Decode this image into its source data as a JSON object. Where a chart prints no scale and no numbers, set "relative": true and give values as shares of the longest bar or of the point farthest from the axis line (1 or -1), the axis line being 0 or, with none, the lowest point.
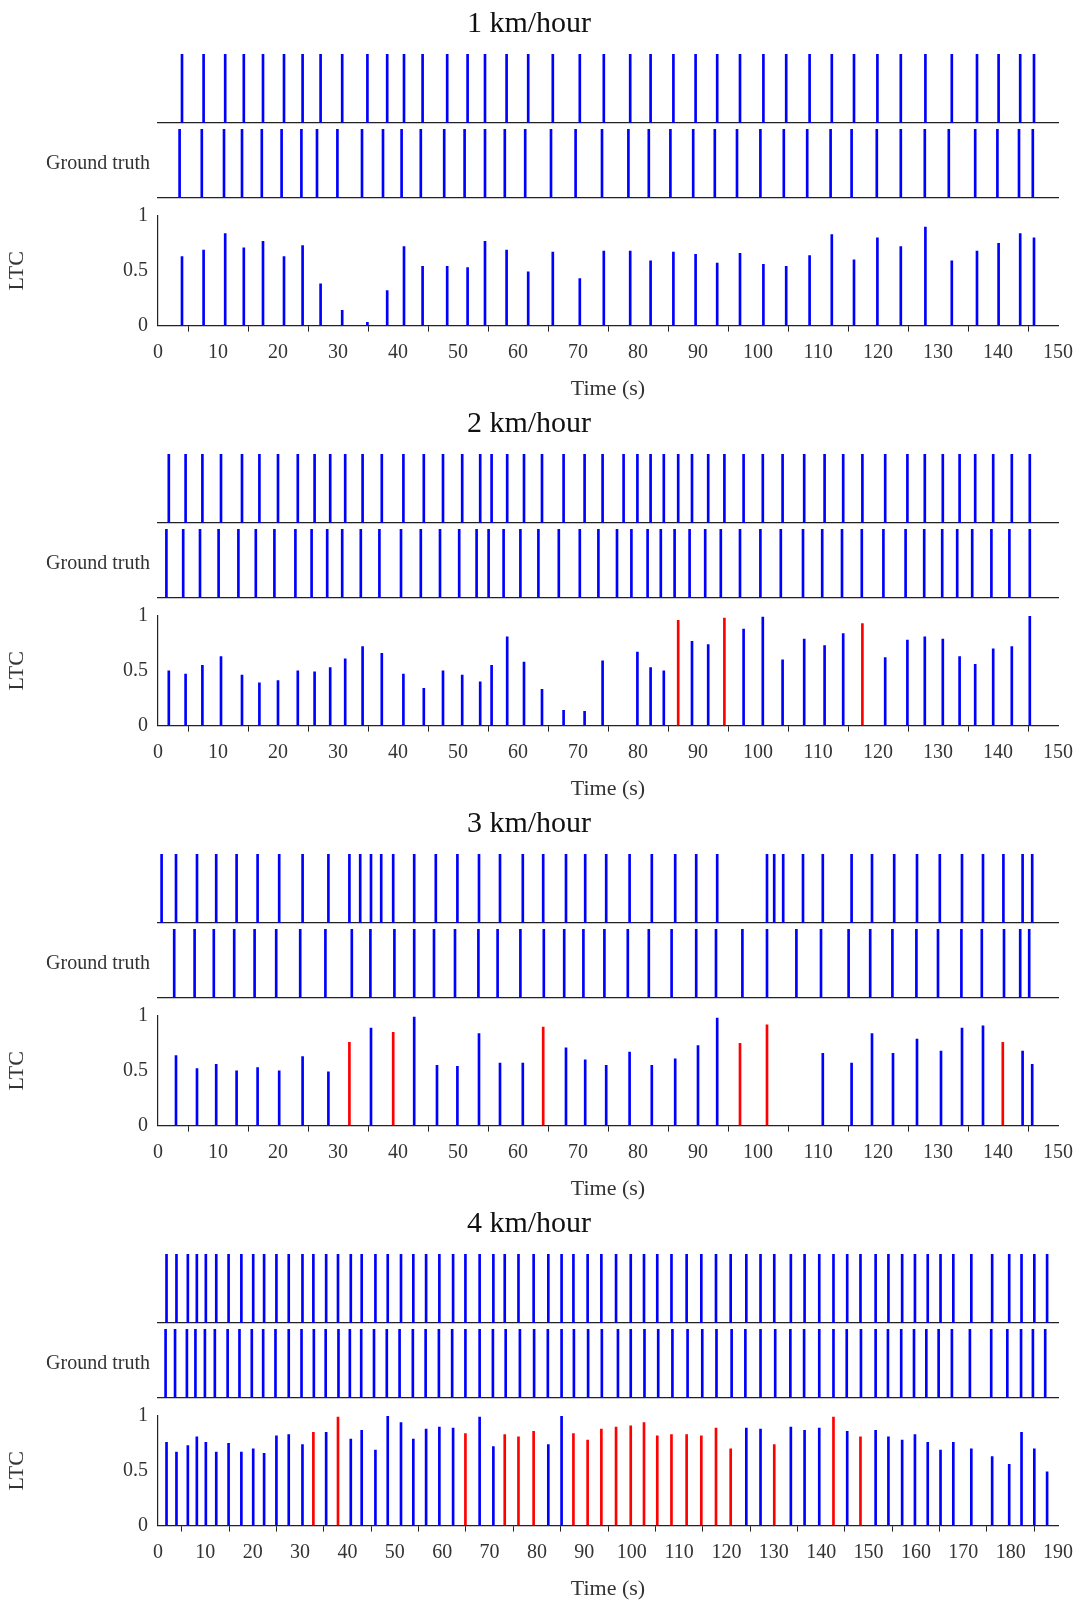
{
  "chart_data": [
    {
      "type": "bar",
      "title": "1 km/hour",
      "relative": true,
      "color": "#0000ff",
      "xlim": [
        0,
        150
      ],
      "x": [
        4.0,
        7.6,
        11.2,
        14.3,
        17.5,
        21.0,
        24.1,
        27.1,
        30.7,
        34.9,
        38.2,
        41.0,
        44.1,
        48.2,
        51.6,
        54.5,
        58.1,
        61.7,
        65.8,
        70.3,
        74.3,
        78.7,
        82.1,
        85.9,
        89.6,
        93.2,
        97.0,
        100.9,
        104.7,
        108.6,
        112.3,
        116.0,
        119.9,
        123.8,
        127.9,
        132.3,
        136.5,
        140.1,
        143.7,
        146.0
      ],
      "values": [
        1,
        1,
        1,
        1,
        1,
        1,
        1,
        1,
        1,
        1,
        1,
        1,
        1,
        1,
        1,
        1,
        1,
        1,
        1,
        1,
        1,
        1,
        1,
        1,
        1,
        1,
        1,
        1,
        1,
        1,
        1,
        1,
        1,
        1,
        1,
        1,
        1,
        1,
        1,
        1
      ]
    },
    {
      "type": "bar",
      "ylabel": "Ground truth",
      "relative": true,
      "color": "#0000ff",
      "xlim": [
        0,
        150
      ],
      "x": [
        3.6,
        7.3,
        11.0,
        14.0,
        17.3,
        20.6,
        23.9,
        26.5,
        29.9,
        34.0,
        37.5,
        40.6,
        43.8,
        47.7,
        51.1,
        54.5,
        57.8,
        61.2,
        65.5,
        69.6,
        74.0,
        78.4,
        81.8,
        85.4,
        89.2,
        92.8,
        96.5,
        100.4,
        104.3,
        108.2,
        112.1,
        115.6,
        119.8,
        123.8,
        127.8,
        131.8,
        136.2,
        139.9,
        143.5,
        145.8
      ],
      "values": [
        1,
        1,
        1,
        1,
        1,
        1,
        1,
        1,
        1,
        1,
        1,
        1,
        1,
        1,
        1,
        1,
        1,
        1,
        1,
        1,
        1,
        1,
        1,
        1,
        1,
        1,
        1,
        1,
        1,
        1,
        1,
        1,
        1,
        1,
        1,
        1,
        1,
        1,
        1,
        1
      ]
    },
    {
      "type": "bar",
      "xlabel": "Time (s)",
      "ylabel": "LTC",
      "color": "#0000ff",
      "xlim": [
        0,
        150
      ],
      "xticks": [
        0,
        10,
        20,
        30,
        40,
        50,
        60,
        70,
        80,
        90,
        100,
        110,
        120,
        130,
        140,
        150
      ],
      "ylim": [
        0,
        1
      ],
      "yticks": [
        0,
        0.5,
        1
      ],
      "x": [
        4.0,
        7.6,
        11.2,
        14.3,
        17.5,
        21.0,
        24.1,
        27.1,
        30.7,
        34.9,
        38.2,
        41.0,
        44.1,
        48.2,
        51.6,
        54.5,
        58.1,
        61.7,
        65.8,
        70.3,
        74.3,
        78.7,
        82.1,
        85.9,
        89.6,
        93.2,
        97.0,
        100.9,
        104.7,
        108.6,
        112.3,
        116.0,
        119.9,
        123.8,
        127.9,
        132.3,
        136.5,
        140.1,
        143.7,
        146.0
      ],
      "values": [
        0.63,
        0.69,
        0.84,
        0.71,
        0.77,
        0.63,
        0.73,
        0.38,
        0.14,
        0.03,
        0.32,
        0.72,
        0.54,
        0.54,
        0.53,
        0.77,
        0.69,
        0.49,
        0.67,
        0.43,
        0.68,
        0.68,
        0.59,
        0.67,
        0.65,
        0.57,
        0.66,
        0.56,
        0.54,
        0.64,
        0.83,
        0.6,
        0.8,
        0.72,
        0.9,
        0.59,
        0.68,
        0.75,
        0.84,
        0.8
      ]
    },
    {
      "type": "bar",
      "title": "2 km/hour",
      "relative": true,
      "color": "#0000ff",
      "xlim": [
        0,
        150
      ],
      "x": [
        1.8,
        4.6,
        7.4,
        10.5,
        14.0,
        16.9,
        20.0,
        23.3,
        26.1,
        28.7,
        31.2,
        34.1,
        37.3,
        40.9,
        44.3,
        47.5,
        50.7,
        53.7,
        55.6,
        58.2,
        61.0,
        64.0,
        67.6,
        71.1,
        74.1,
        77.6,
        79.9,
        82.1,
        84.3,
        86.7,
        89.0,
        91.7,
        94.4,
        97.6,
        100.8,
        104.1,
        107.7,
        111.1,
        114.2,
        117.4,
        121.2,
        124.9,
        127.8,
        130.8,
        133.6,
        136.2,
        139.2,
        142.3,
        145.3
      ],
      "values": [
        1,
        1,
        1,
        1,
        1,
        1,
        1,
        1,
        1,
        1,
        1,
        1,
        1,
        1,
        1,
        1,
        1,
        1,
        1,
        1,
        1,
        1,
        1,
        1,
        1,
        1,
        1,
        1,
        1,
        1,
        1,
        1,
        1,
        1,
        1,
        1,
        1,
        1,
        1,
        1,
        1,
        1,
        1,
        1,
        1,
        1,
        1,
        1,
        1
      ]
    },
    {
      "type": "bar",
      "ylabel": "Ground truth",
      "relative": true,
      "color": "#0000ff",
      "xlim": [
        0,
        150
      ],
      "x": [
        1.4,
        4.2,
        7.0,
        10.1,
        13.4,
        16.3,
        19.4,
        22.9,
        25.6,
        28.2,
        30.7,
        33.8,
        36.9,
        40.5,
        43.8,
        47.0,
        50.2,
        53.1,
        55.1,
        57.6,
        60.4,
        63.4,
        66.8,
        70.3,
        73.4,
        76.5,
        78.9,
        81.6,
        83.8,
        86.1,
        88.6,
        91.2,
        93.8,
        97.0,
        100.4,
        103.8,
        107.5,
        110.7,
        114.0,
        117.3,
        120.9,
        124.6,
        127.7,
        130.7,
        133.2,
        135.7,
        138.9,
        141.9,
        145.3
      ],
      "values": [
        1,
        1,
        1,
        1,
        1,
        1,
        1,
        1,
        1,
        1,
        1,
        1,
        1,
        1,
        1,
        1,
        1,
        1,
        1,
        1,
        1,
        1,
        1,
        1,
        1,
        1,
        1,
        1,
        1,
        1,
        1,
        1,
        1,
        1,
        1,
        1,
        1,
        1,
        1,
        1,
        1,
        1,
        1,
        1,
        1,
        1,
        1,
        1,
        1
      ]
    },
    {
      "type": "bar",
      "xlabel": "Time (s)",
      "ylabel": "LTC",
      "xlim": [
        0,
        150
      ],
      "xticks": [
        0,
        10,
        20,
        30,
        40,
        50,
        60,
        70,
        80,
        90,
        100,
        110,
        120,
        130,
        140,
        150
      ],
      "ylim": [
        0,
        1
      ],
      "yticks": [
        0,
        0.5,
        1
      ],
      "x": [
        1.8,
        4.6,
        7.4,
        10.5,
        14.0,
        16.9,
        20.0,
        23.3,
        26.1,
        28.7,
        31.2,
        34.1,
        37.3,
        40.9,
        44.3,
        47.5,
        50.7,
        53.7,
        55.6,
        58.2,
        61.0,
        64.0,
        67.6,
        71.1,
        74.1,
        79.9,
        82.1,
        84.3,
        86.7,
        89.0,
        91.7,
        94.4,
        97.6,
        100.8,
        104.1,
        107.7,
        111.1,
        114.2,
        117.4,
        121.2,
        124.9,
        127.8,
        130.8,
        133.6,
        136.2,
        139.2,
        142.3,
        145.3
      ],
      "values": [
        0.5,
        0.47,
        0.55,
        0.63,
        0.46,
        0.39,
        0.41,
        0.5,
        0.49,
        0.53,
        0.61,
        0.72,
        0.66,
        0.47,
        0.34,
        0.5,
        0.46,
        0.4,
        0.55,
        0.81,
        0.58,
        0.33,
        0.14,
        0.13,
        0.59,
        0.67,
        0.53,
        0.5,
        0.96,
        0.77,
        0.74,
        0.98,
        0.88,
        0.99,
        0.6,
        0.79,
        0.73,
        0.84,
        0.93,
        0.62,
        0.78,
        0.81,
        0.79,
        0.63,
        0.56,
        0.7,
        0.72,
        1.0
      ],
      "colors": [
        "#0000ff",
        "#0000ff",
        "#0000ff",
        "#0000ff",
        "#0000ff",
        "#0000ff",
        "#0000ff",
        "#0000ff",
        "#0000ff",
        "#0000ff",
        "#0000ff",
        "#0000ff",
        "#0000ff",
        "#0000ff",
        "#0000ff",
        "#0000ff",
        "#0000ff",
        "#0000ff",
        "#0000ff",
        "#0000ff",
        "#0000ff",
        "#0000ff",
        "#0000ff",
        "#0000ff",
        "#0000ff",
        "#0000ff",
        "#0000ff",
        "#0000ff",
        "#ff0000",
        "#0000ff",
        "#0000ff",
        "#ff0000",
        "#0000ff",
        "#0000ff",
        "#0000ff",
        "#0000ff",
        "#0000ff",
        "#0000ff",
        "#ff0000",
        "#0000ff",
        "#0000ff",
        "#0000ff",
        "#0000ff",
        "#0000ff",
        "#0000ff",
        "#0000ff",
        "#0000ff",
        "#0000ff"
      ]
    },
    {
      "type": "bar",
      "title": "3 km/hour",
      "relative": true,
      "color": "#0000ff",
      "xlim": [
        0,
        150
      ],
      "x": [
        0.6,
        3.0,
        6.5,
        9.7,
        13.1,
        16.6,
        20.2,
        24.1,
        28.4,
        31.9,
        33.7,
        35.5,
        37.2,
        39.2,
        42.7,
        46.3,
        49.9,
        53.5,
        57.0,
        60.8,
        64.2,
        68.0,
        71.2,
        74.7,
        78.6,
        82.3,
        86.2,
        89.7,
        93.2,
        101.5,
        102.7,
        104.2,
        107.5,
        110.8,
        115.6,
        119.0,
        122.7,
        126.5,
        130.3,
        134.0,
        137.5,
        140.9,
        144.1,
        145.7
      ],
      "values": [
        1,
        1,
        1,
        1,
        1,
        1,
        1,
        1,
        1,
        1,
        1,
        1,
        1,
        1,
        1,
        1,
        1,
        1,
        1,
        1,
        1,
        1,
        1,
        1,
        1,
        1,
        1,
        1,
        1,
        1,
        1,
        1,
        1,
        1,
        1,
        1,
        1,
        1,
        1,
        1,
        1,
        1,
        1,
        1
      ]
    },
    {
      "type": "bar",
      "ylabel": "Ground truth",
      "relative": true,
      "color": "#0000ff",
      "xlim": [
        0,
        150
      ],
      "x": [
        2.7,
        6.1,
        9.3,
        12.7,
        16.1,
        19.7,
        23.7,
        27.9,
        32.3,
        35.4,
        39.4,
        42.7,
        46.0,
        49.5,
        53.4,
        56.6,
        60.4,
        64.3,
        67.7,
        70.9,
        74.4,
        78.3,
        81.8,
        85.6,
        89.7,
        93.0,
        97.4,
        101.5,
        106.4,
        110.5,
        115.1,
        118.7,
        122.4,
        126.4,
        130.0,
        133.9,
        137.3,
        141.0,
        143.7,
        145.2
      ],
      "values": [
        1,
        1,
        1,
        1,
        1,
        1,
        1,
        1,
        1,
        1,
        1,
        1,
        1,
        1,
        1,
        1,
        1,
        1,
        1,
        1,
        1,
        1,
        1,
        1,
        1,
        1,
        1,
        1,
        1,
        1,
        1,
        1,
        1,
        1,
        1,
        1,
        1,
        1,
        1,
        1
      ]
    },
    {
      "type": "bar",
      "xlabel": "Time (s)",
      "ylabel": "LTC",
      "xlim": [
        0,
        150
      ],
      "xticks": [
        0,
        10,
        20,
        30,
        40,
        50,
        60,
        70,
        80,
        90,
        100,
        110,
        120,
        130,
        140,
        150
      ],
      "ylim": [
        0,
        1
      ],
      "yticks": [
        0,
        0.5,
        1
      ],
      "x": [
        3.0,
        6.5,
        9.7,
        13.1,
        16.6,
        20.2,
        24.1,
        28.4,
        31.9,
        35.5,
        39.2,
        42.7,
        46.5,
        49.9,
        53.5,
        57.0,
        60.8,
        64.2,
        68.0,
        71.2,
        74.7,
        78.6,
        82.3,
        86.2,
        90.0,
        93.2,
        97.0,
        101.5,
        110.8,
        115.6,
        119.0,
        122.5,
        126.5,
        130.5,
        134.0,
        137.5,
        140.8,
        144.1,
        145.7
      ],
      "values": [
        0.64,
        0.52,
        0.56,
        0.5,
        0.53,
        0.5,
        0.63,
        0.49,
        0.76,
        0.89,
        0.85,
        0.99,
        0.55,
        0.54,
        0.84,
        0.57,
        0.57,
        0.9,
        0.71,
        0.6,
        0.55,
        0.67,
        0.55,
        0.61,
        0.73,
        0.98,
        0.75,
        0.92,
        0.66,
        0.57,
        0.84,
        0.66,
        0.79,
        0.68,
        0.89,
        0.91,
        0.76,
        0.68,
        0.56
      ],
      "colors": [
        "#0000ff",
        "#0000ff",
        "#0000ff",
        "#0000ff",
        "#0000ff",
        "#0000ff",
        "#0000ff",
        "#0000ff",
        "#ff0000",
        "#0000ff",
        "#ff0000",
        "#0000ff",
        "#0000ff",
        "#0000ff",
        "#0000ff",
        "#0000ff",
        "#0000ff",
        "#ff0000",
        "#0000ff",
        "#0000ff",
        "#0000ff",
        "#0000ff",
        "#0000ff",
        "#0000ff",
        "#0000ff",
        "#0000ff",
        "#ff0000",
        "#ff0000",
        "#0000ff",
        "#0000ff",
        "#0000ff",
        "#0000ff",
        "#0000ff",
        "#0000ff",
        "#0000ff",
        "#0000ff",
        "#ff0000",
        "#0000ff",
        "#0000ff"
      ]
    },
    {
      "type": "bar",
      "title": "4 km/hour",
      "relative": true,
      "color": "#0000ff",
      "xlim": [
        0,
        190
      ],
      "x": [
        1.8,
        3.9,
        6.3,
        8.2,
        10.1,
        12.3,
        14.9,
        17.6,
        20.1,
        22.4,
        25.0,
        27.6,
        30.5,
        32.8,
        35.5,
        38.0,
        40.7,
        43.0,
        45.9,
        48.5,
        51.3,
        53.9,
        56.6,
        59.4,
        62.3,
        64.9,
        67.9,
        70.8,
        73.2,
        76.1,
        79.3,
        82.4,
        85.2,
        87.7,
        90.7,
        93.6,
        96.7,
        99.8,
        102.6,
        105.4,
        108.4,
        111.6,
        114.7,
        117.8,
        120.9,
        124.2,
        127.2,
        130.1,
        133.6,
        136.5,
        139.6,
        142.6,
        145.5,
        148.3,
        151.5,
        154.2,
        157.1,
        159.8,
        162.5,
        165.2,
        167.9,
        171.7,
        176.1,
        179.7,
        182.3,
        185.0,
        187.7
      ],
      "values": [
        1,
        1,
        1,
        1,
        1,
        1,
        1,
        1,
        1,
        1,
        1,
        1,
        1,
        1,
        1,
        1,
        1,
        1,
        1,
        1,
        1,
        1,
        1,
        1,
        1,
        1,
        1,
        1,
        1,
        1,
        1,
        1,
        1,
        1,
        1,
        1,
        1,
        1,
        1,
        1,
        1,
        1,
        1,
        1,
        1,
        1,
        1,
        1,
        1,
        1,
        1,
        1,
        1,
        1,
        1,
        1,
        1,
        1,
        1,
        1,
        1,
        1,
        1,
        1,
        1,
        1,
        1
      ]
    },
    {
      "type": "bar",
      "ylabel": "Ground truth",
      "relative": true,
      "color": "#0000ff",
      "xlim": [
        0,
        190
      ],
      "x": [
        1.6,
        3.6,
        6.1,
        7.9,
        9.9,
        12.0,
        14.7,
        17.2,
        19.8,
        22.2,
        24.8,
        27.6,
        30.3,
        32.9,
        35.4,
        38.1,
        40.5,
        42.9,
        45.6,
        48.3,
        51.0,
        53.8,
        56.5,
        59.3,
        62.1,
        64.9,
        67.9,
        70.7,
        73.4,
        76.4,
        79.4,
        82.3,
        85.2,
        87.8,
        90.8,
        93.7,
        97.1,
        99.8,
        102.7,
        105.6,
        108.6,
        111.8,
        114.9,
        117.9,
        121.1,
        124.0,
        127.2,
        130.3,
        133.5,
        136.4,
        139.6,
        142.6,
        145.4,
        148.4,
        151.5,
        154.1,
        156.9,
        159.6,
        162.2,
        164.8,
        167.6,
        171.4,
        175.9,
        179.3,
        182.2,
        184.7,
        187.3
      ],
      "values": [
        1,
        1,
        1,
        1,
        1,
        1,
        1,
        1,
        1,
        1,
        1,
        1,
        1,
        1,
        1,
        1,
        1,
        1,
        1,
        1,
        1,
        1,
        1,
        1,
        1,
        1,
        1,
        1,
        1,
        1,
        1,
        1,
        1,
        1,
        1,
        1,
        1,
        1,
        1,
        1,
        1,
        1,
        1,
        1,
        1,
        1,
        1,
        1,
        1,
        1,
        1,
        1,
        1,
        1,
        1,
        1,
        1,
        1,
        1,
        1,
        1,
        1,
        1,
        1,
        1,
        1,
        1
      ]
    },
    {
      "type": "bar",
      "xlabel": "Time (s)",
      "ylabel": "LTC",
      "xlim": [
        0,
        190
      ],
      "xticks": [
        0,
        10,
        20,
        30,
        40,
        50,
        60,
        70,
        80,
        90,
        100,
        110,
        120,
        130,
        140,
        150,
        160,
        170,
        180,
        190
      ],
      "ylim": [
        0,
        1
      ],
      "yticks": [
        0,
        0.5,
        1
      ],
      "x": [
        1.8,
        3.9,
        6.3,
        8.2,
        10.1,
        12.3,
        14.9,
        17.6,
        20.1,
        22.4,
        25.0,
        27.6,
        30.5,
        32.8,
        35.5,
        38.0,
        40.7,
        43.0,
        45.9,
        48.5,
        51.3,
        53.9,
        56.6,
        59.4,
        62.3,
        64.9,
        67.9,
        70.8,
        73.2,
        76.1,
        79.3,
        82.4,
        85.2,
        87.7,
        90.7,
        93.6,
        96.7,
        99.8,
        102.6,
        105.4,
        108.4,
        111.6,
        114.7,
        117.8,
        120.9,
        124.2,
        127.2,
        130.1,
        133.6,
        136.5,
        139.6,
        142.6,
        145.5,
        148.3,
        151.5,
        154.2,
        157.1,
        159.8,
        162.5,
        165.2,
        167.9,
        171.7,
        176.1,
        179.7,
        182.3,
        185.0,
        187.7
      ],
      "values": [
        0.76,
        0.67,
        0.73,
        0.81,
        0.76,
        0.67,
        0.75,
        0.67,
        0.7,
        0.66,
        0.82,
        0.83,
        0.74,
        0.85,
        0.85,
        0.99,
        0.79,
        0.87,
        0.69,
        1.0,
        0.94,
        0.79,
        0.88,
        0.9,
        0.89,
        0.84,
        0.99,
        0.72,
        0.83,
        0.81,
        0.86,
        0.74,
        1.0,
        0.84,
        0.78,
        0.88,
        0.9,
        0.91,
        0.94,
        0.82,
        0.83,
        0.83,
        0.82,
        0.89,
        0.7,
        0.89,
        0.88,
        0.74,
        0.9,
        0.87,
        0.89,
        0.99,
        0.86,
        0.81,
        0.87,
        0.81,
        0.78,
        0.83,
        0.76,
        0.69,
        0.76,
        0.7,
        0.63,
        0.56,
        0.85,
        0.7,
        0.49
      ],
      "colors": [
        "#0000ff",
        "#0000ff",
        "#0000ff",
        "#0000ff",
        "#0000ff",
        "#0000ff",
        "#0000ff",
        "#0000ff",
        "#0000ff",
        "#0000ff",
        "#0000ff",
        "#0000ff",
        "#0000ff",
        "#ff0000",
        "#0000ff",
        "#ff0000",
        "#0000ff",
        "#0000ff",
        "#0000ff",
        "#0000ff",
        "#0000ff",
        "#0000ff",
        "#0000ff",
        "#0000ff",
        "#0000ff",
        "#ff0000",
        "#0000ff",
        "#0000ff",
        "#ff0000",
        "#ff0000",
        "#ff0000",
        "#0000ff",
        "#0000ff",
        "#ff0000",
        "#ff0000",
        "#ff0000",
        "#ff0000",
        "#ff0000",
        "#ff0000",
        "#ff0000",
        "#ff0000",
        "#ff0000",
        "#ff0000",
        "#ff0000",
        "#ff0000",
        "#0000ff",
        "#0000ff",
        "#ff0000",
        "#0000ff",
        "#0000ff",
        "#0000ff",
        "#ff0000",
        "#0000ff",
        "#ff0000",
        "#0000ff",
        "#0000ff",
        "#0000ff",
        "#0000ff",
        "#0000ff",
        "#0000ff",
        "#0000ff",
        "#0000ff",
        "#0000ff",
        "#0000ff",
        "#0000ff",
        "#0000ff",
        "#0000ff"
      ]
    }
  ]
}
